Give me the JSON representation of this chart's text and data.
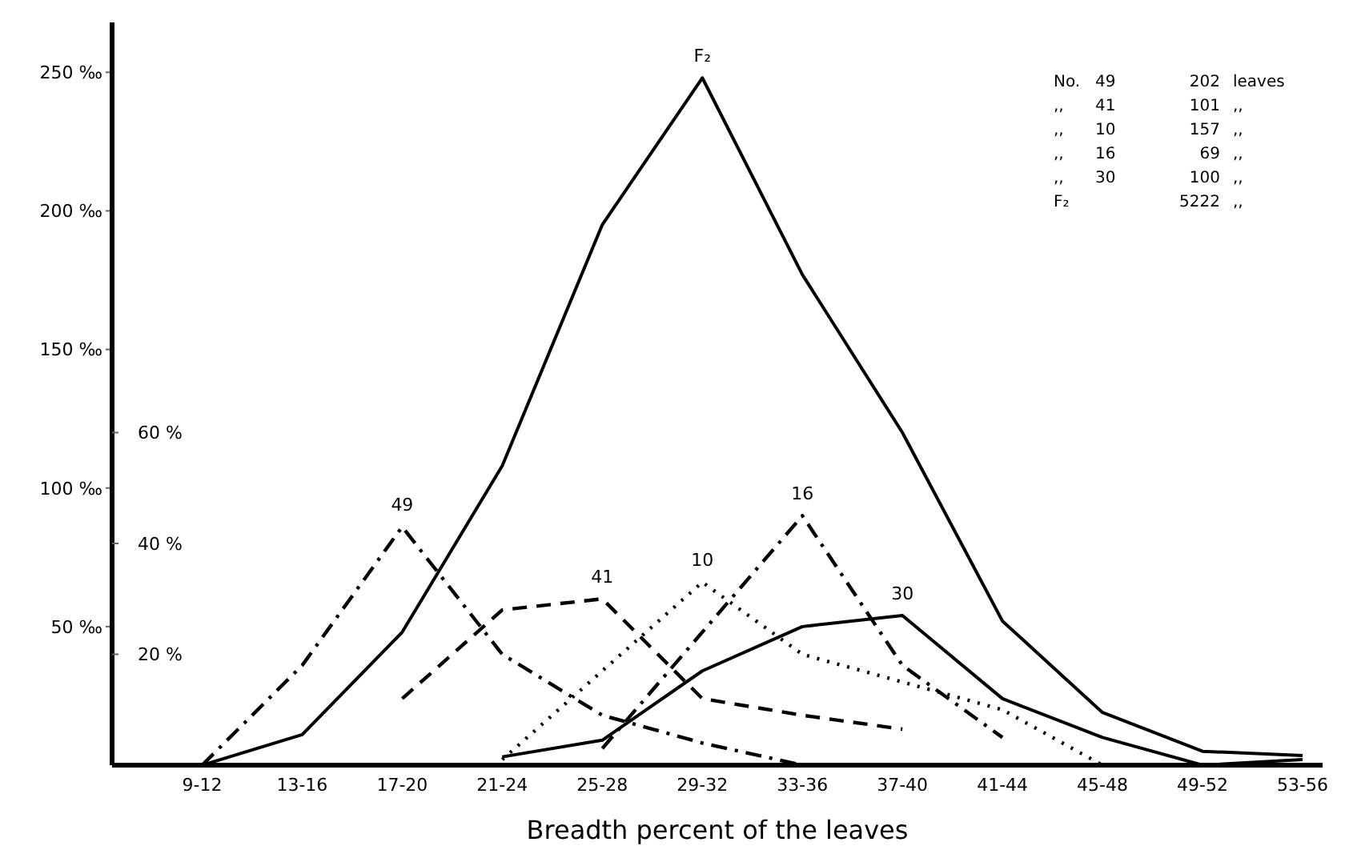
{
  "chart_data": {
    "type": "line",
    "xlabel": "Breadth percent of the leaves",
    "categories": [
      "9-12",
      "13-16",
      "17-20",
      "21-24",
      "25-28",
      "29-32",
      "33-36",
      "37-40",
      "41-44",
      "45-48",
      "49-52",
      "53-56"
    ],
    "series": [
      {
        "name": "F₂",
        "color": "#000000",
        "line_style": "solid",
        "values": [
          0,
          11,
          48,
          108,
          195,
          248,
          177,
          120,
          52,
          19,
          5,
          3.5
        ]
      },
      {
        "name": "49",
        "color": "#000000",
        "line_style": "dashdot",
        "axis": "y2",
        "values": [
          0,
          18,
          43,
          20,
          9,
          4,
          0,
          null,
          null,
          null,
          null,
          null
        ]
      },
      {
        "name": "41",
        "color": "#000000",
        "line_style": "dashed",
        "axis": "y2",
        "values": [
          null,
          null,
          12,
          28,
          30,
          12,
          9,
          6.5,
          null,
          null,
          null,
          null
        ]
      },
      {
        "name": "10",
        "color": "#000000",
        "line_style": "dotted",
        "axis": "y2",
        "values": [
          null,
          null,
          null,
          1,
          17,
          33,
          20,
          15,
          10,
          0,
          null,
          null
        ]
      },
      {
        "name": "16",
        "color": "#000000",
        "line_style": "dashdot",
        "axis": "y2",
        "values": [
          null,
          null,
          null,
          null,
          3,
          24,
          45,
          18,
          5,
          null,
          null,
          null
        ]
      },
      {
        "name": "30",
        "color": "#000000",
        "line_style": "solid",
        "axis": "y2",
        "values": [
          null,
          null,
          null,
          1.5,
          4.5,
          17,
          25,
          27,
          12,
          5,
          0,
          1
        ]
      }
    ],
    "ylim": [
      0,
      268
    ],
    "yticks": [
      {
        "value": 50,
        "label": "50 ‰"
      },
      {
        "value": 100,
        "label": "100 ‰"
      },
      {
        "value": 150,
        "label": "150 ‰"
      },
      {
        "value": 200,
        "label": "200 ‰"
      },
      {
        "value": 250,
        "label": "250 ‰"
      }
    ],
    "y2lim": [
      0,
      134
    ],
    "y2ticks": [
      {
        "value": 20,
        "label": "20 %"
      },
      {
        "value": 40,
        "label": "40 %"
      },
      {
        "value": 60,
        "label": "60 %"
      }
    ],
    "annotations": [
      "No. 49 202 leaves",
      ",, 41 101 ,,",
      ",, 10 157 ,,",
      ",, 16 69 ,,",
      ",, 30 100 ,,",
      "F₂ 5222 ,,"
    ],
    "grid": false,
    "legend": false,
    "marker": "none"
  }
}
